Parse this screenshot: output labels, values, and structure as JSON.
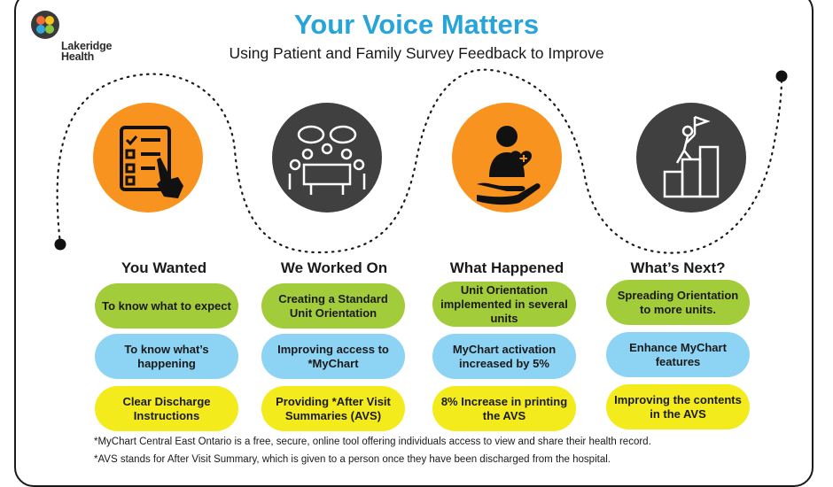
{
  "header": {
    "logo_text_line1": "Lakeridge",
    "logo_text_line2": "Health",
    "title": "Your Voice Matters",
    "subtitle": "Using Patient and Family Survey Feedback to Improve"
  },
  "icons": [
    "checklist-icon",
    "meeting-icon",
    "patient-care-icon",
    "goal-stairs-icon"
  ],
  "colors": {
    "title": "#27a5d8",
    "orange": "#f7931e",
    "dark": "#404040",
    "green": "#a3cc3b",
    "blue": "#8dd3f3",
    "yellow": "#f3eb1b"
  },
  "columns": [
    {
      "heading": "You Wanted",
      "items": [
        "To know what to expect",
        "To know what’s happening",
        "Clear Discharge Instructions"
      ]
    },
    {
      "heading": "We Worked On",
      "items": [
        "Creating a Standard Unit Orientation",
        "Improving access to *MyChart",
        "Providing *After Visit Summaries (AVS)"
      ]
    },
    {
      "heading": "What Happened",
      "items": [
        "Unit Orientation implemented in several units",
        "MyChart activation increased by 5%",
        "8% Increase in printing the AVS"
      ]
    },
    {
      "heading": "What’s Next?",
      "items": [
        "Spreading Orientation to more units.",
        "Enhance MyChart features",
        "Improving the contents in the AVS"
      ]
    }
  ],
  "footnotes": [
    "*MyChart Central East Ontario is a free, secure, online tool offering individuals access to view and share their health record.",
    "*AVS stands for After Visit Summary, which is given to a person once they have been discharged from the hospital."
  ]
}
